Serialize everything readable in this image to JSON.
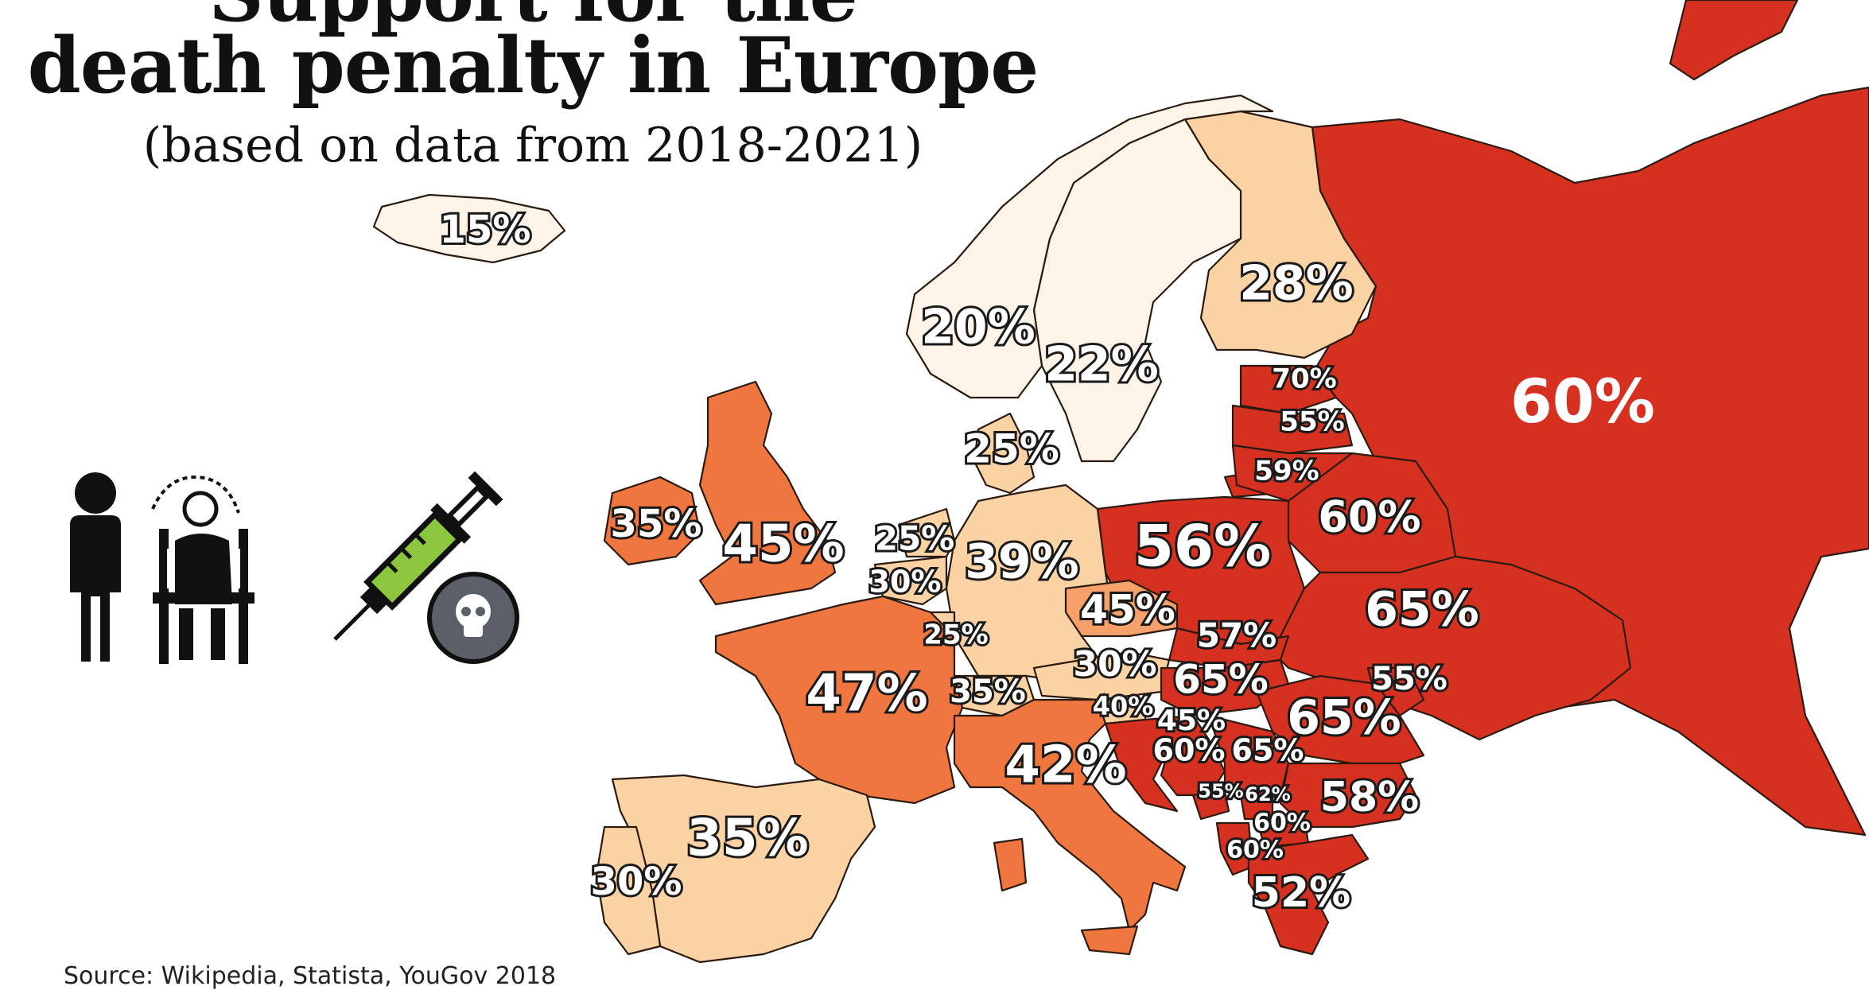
{
  "title_line1": "Support for the",
  "title_line2": "death penalty in Europe",
  "subtitle": "(based on data from 2018-2021)",
  "source": "Source: Wikipedia, Statista, YouGov 2018",
  "icons": [
    "person-icon",
    "electric-chair-icon",
    "syringe-icon",
    "skull-icon"
  ],
  "colors": {
    "very_light": "#fdf3e7",
    "light": "#fbd2a4",
    "medium": "#f7a06a",
    "orange": "#f0763f",
    "red": "#d63020"
  },
  "countries": [
    {
      "name": "iceland",
      "label": "15%"
    },
    {
      "name": "norway",
      "label": "20%"
    },
    {
      "name": "sweden",
      "label": "22%"
    },
    {
      "name": "finland",
      "label": "28%"
    },
    {
      "name": "russia",
      "label": "60%"
    },
    {
      "name": "estonia",
      "label": "70%"
    },
    {
      "name": "latvia",
      "label": "55%"
    },
    {
      "name": "lithuania",
      "label": "59%"
    },
    {
      "name": "belarus",
      "label": "60%"
    },
    {
      "name": "denmark",
      "label": "25%"
    },
    {
      "name": "ireland",
      "label": "35%"
    },
    {
      "name": "uk",
      "label": "45%"
    },
    {
      "name": "netherlands",
      "label": "25%"
    },
    {
      "name": "belgium",
      "label": "30%"
    },
    {
      "name": "luxembourg",
      "label": "25%"
    },
    {
      "name": "germany",
      "label": "39%"
    },
    {
      "name": "poland",
      "label": "56%"
    },
    {
      "name": "czechia",
      "label": "45%"
    },
    {
      "name": "slovakia",
      "label": "57%"
    },
    {
      "name": "ukraine",
      "label": "65%"
    },
    {
      "name": "moldova",
      "label": "55%"
    },
    {
      "name": "austria",
      "label": "30%"
    },
    {
      "name": "hungary",
      "label": "65%"
    },
    {
      "name": "switzerland",
      "label": "35%"
    },
    {
      "name": "france",
      "label": "47%"
    },
    {
      "name": "slovenia",
      "label": "40%"
    },
    {
      "name": "croatia",
      "label": "45%"
    },
    {
      "name": "romania",
      "label": "65%"
    },
    {
      "name": "bosnia",
      "label": "60%"
    },
    {
      "name": "serbia",
      "label": "65%"
    },
    {
      "name": "italy",
      "label": "42%"
    },
    {
      "name": "montenegro",
      "label": "55%"
    },
    {
      "name": "kosovo",
      "label": "62%"
    },
    {
      "name": "bulgaria",
      "label": "58%"
    },
    {
      "name": "north_macedonia",
      "label": "60%"
    },
    {
      "name": "albania",
      "label": "60%"
    },
    {
      "name": "greece",
      "label": "52%"
    },
    {
      "name": "spain",
      "label": "35%"
    },
    {
      "name": "portugal",
      "label": "30%"
    }
  ]
}
